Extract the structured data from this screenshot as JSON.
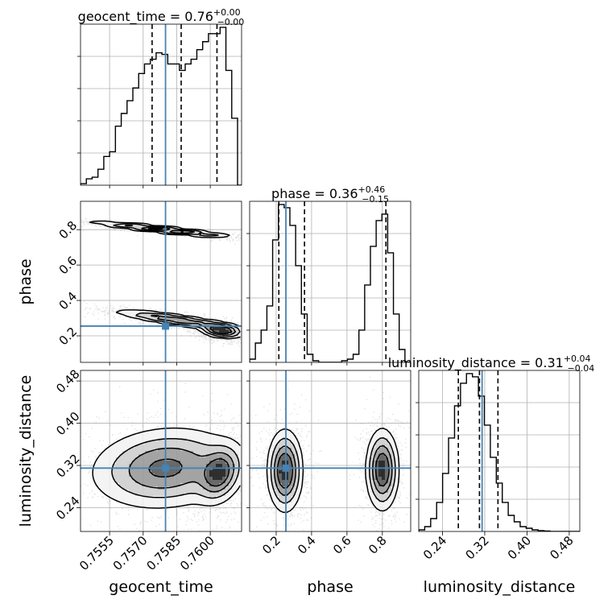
{
  "colors": {
    "truth": "#4682b4",
    "hist": "#000000",
    "quantile": "#000000",
    "grid": "#b0b0b0",
    "density": [
      "#f2f2f2",
      "#cfcfcf",
      "#9a9a9a",
      "#5a5a5a",
      "#1a1a1a"
    ]
  },
  "chart_data": {
    "type": "corner",
    "parameters": [
      "geocent_time",
      "phase",
      "luminosity_distance"
    ],
    "axis_labels": {
      "geocent_time": "geocent_time",
      "phase": "phase",
      "luminosity_distance": "luminosity_distance"
    },
    "ranges": {
      "geocent_time": [
        0.7542,
        0.7614
      ],
      "phase": [
        0.05,
        0.96
      ],
      "luminosity_distance": [
        0.195,
        0.5
      ]
    },
    "ticks": {
      "geocent_time": {
        "values": [
          0.7555,
          0.757,
          0.7585,
          0.76
        ],
        "labels": [
          "0.7555",
          "0.7570",
          "0.7585",
          "0.7600"
        ]
      },
      "phase": {
        "values": [
          0.2,
          0.4,
          0.6,
          0.8
        ],
        "labels": [
          "0.2",
          "0.4",
          "0.6",
          "0.8"
        ]
      },
      "luminosity_distance": {
        "values": [
          0.24,
          0.32,
          0.4,
          0.48
        ],
        "labels": [
          "0.24",
          "0.32",
          "0.40",
          "0.48"
        ]
      }
    },
    "truths": {
      "geocent_time": 0.758,
      "phase": 0.255,
      "luminosity_distance": 0.315
    },
    "titles": {
      "geocent_time": {
        "text": "geocent_time = 0.76",
        "sup": "+0.00",
        "sub": "−0.00"
      },
      "phase": {
        "text": "phase = 0.36",
        "sup": "+0.46",
        "sub": "−0.15"
      },
      "luminosity_distance": {
        "text": "luminosity_distance = 0.31",
        "sup": "+0.04",
        "sub": "−0.04"
      }
    },
    "quantiles": {
      "geocent_time": [
        0.7574,
        0.7587,
        0.7603
      ],
      "phase": [
        0.215,
        0.36,
        0.82
      ],
      "luminosity_distance": [
        0.27,
        0.31,
        0.345
      ]
    },
    "histograms": {
      "geocent_time": {
        "edges": [
          0.7542,
          0.75446,
          0.75472,
          0.75498,
          0.75524,
          0.7555,
          0.75576,
          0.75602,
          0.75628,
          0.75654,
          0.7568,
          0.75706,
          0.75732,
          0.75758,
          0.75784,
          0.7581,
          0.75836,
          0.75862,
          0.75888,
          0.75914,
          0.7594,
          0.75966,
          0.75992,
          0.76018,
          0.76044,
          0.7607,
          0.76096,
          0.76122,
          0.7614
        ],
        "counts": [
          1,
          4,
          5,
          10,
          18,
          21,
          37,
          45,
          53,
          61,
          70,
          76,
          79,
          83,
          82,
          76,
          76,
          72,
          76,
          79,
          85,
          90,
          95,
          95,
          99,
          72,
          42,
          0
        ]
      },
      "phase": {
        "edges": [
          0.05,
          0.0825,
          0.115,
          0.1475,
          0.18,
          0.2125,
          0.245,
          0.2775,
          0.31,
          0.3425,
          0.375,
          0.4075,
          0.44,
          0.4725,
          0.505,
          0.5375,
          0.57,
          0.6025,
          0.635,
          0.6675,
          0.7,
          0.7325,
          0.765,
          0.7975,
          0.83,
          0.8625,
          0.895,
          0.9275,
          0.96
        ],
        "counts": [
          2,
          12,
          20,
          35,
          76,
          98,
          96,
          85,
          60,
          30,
          5,
          1,
          0,
          0,
          0,
          0,
          1,
          2,
          5,
          20,
          48,
          72,
          88,
          92,
          68,
          30,
          8,
          0
        ]
      },
      "luminosity_distance": {
        "edges": [
          0.195,
          0.2063,
          0.2176,
          0.2289,
          0.2402,
          0.2515,
          0.2628,
          0.2741,
          0.2854,
          0.2967,
          0.308,
          0.3193,
          0.3306,
          0.3419,
          0.3532,
          0.3645,
          0.3758,
          0.3871,
          0.3984,
          0.4097,
          0.421,
          0.4323,
          0.4436,
          0.4549,
          0.4662,
          0.4775,
          0.4888,
          0.5
        ],
        "counts": [
          1,
          3,
          8,
          18,
          36,
          58,
          78,
          92,
          98,
          96,
          84,
          66,
          46,
          30,
          18,
          10,
          6,
          3,
          2,
          1,
          0.5,
          0.3,
          0,
          0,
          0,
          0,
          0
        ]
      }
    },
    "pairs": [
      {
        "x": "geocent_time",
        "y": "phase",
        "blobs": [
          {
            "cx": 0.7579,
            "cy": 0.8,
            "sx": 0.00155,
            "sy": 0.022,
            "rho": -0.93,
            "w": 1.0
          },
          {
            "cx": 0.7585,
            "cy": 0.29,
            "sx": 0.00135,
            "sy": 0.028,
            "rho": -0.85,
            "w": 0.8
          },
          {
            "cx": 0.7605,
            "cy": 0.23,
            "sx": 0.00045,
            "sy": 0.02,
            "rho": -0.3,
            "w": 1.3
          }
        ]
      },
      {
        "x": "geocent_time",
        "y": "luminosity_distance",
        "blobs": [
          {
            "cx": 0.758,
            "cy": 0.315,
            "sx": 0.00155,
            "sy": 0.036,
            "rho": 0.12,
            "w": 1.0
          },
          {
            "cx": 0.7604,
            "cy": 0.305,
            "sx": 0.00048,
            "sy": 0.026,
            "rho": 0.25,
            "w": 1.1
          }
        ]
      },
      {
        "x": "phase",
        "y": "luminosity_distance",
        "blobs": [
          {
            "cx": 0.25,
            "cy": 0.31,
            "sx": 0.045,
            "sy": 0.035,
            "rho": 0.0,
            "w": 1.0
          },
          {
            "cx": 0.8,
            "cy": 0.312,
            "sx": 0.042,
            "sy": 0.035,
            "rho": 0.0,
            "w": 0.95
          }
        ]
      }
    ]
  }
}
